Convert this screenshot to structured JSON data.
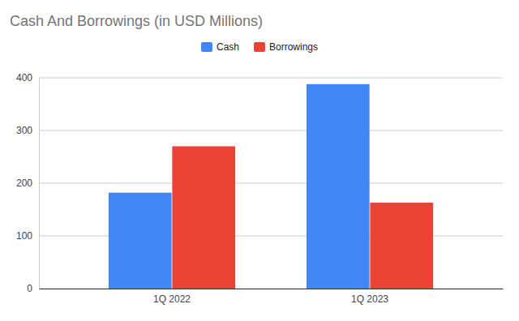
{
  "chart_data": {
    "type": "bar",
    "title": "Cash And Borrowings (in USD Millions)",
    "categories": [
      "1Q 2022",
      "1Q 2023"
    ],
    "series": [
      {
        "name": "Cash",
        "color": "#4285f4",
        "values": [
          182,
          388
        ]
      },
      {
        "name": "Borrowings",
        "color": "#ea4335",
        "values": [
          270,
          163
        ]
      }
    ],
    "ylim": [
      0,
      400
    ],
    "yticks": [
      0,
      100,
      200,
      300,
      400
    ],
    "grid": true,
    "legend": "top"
  }
}
